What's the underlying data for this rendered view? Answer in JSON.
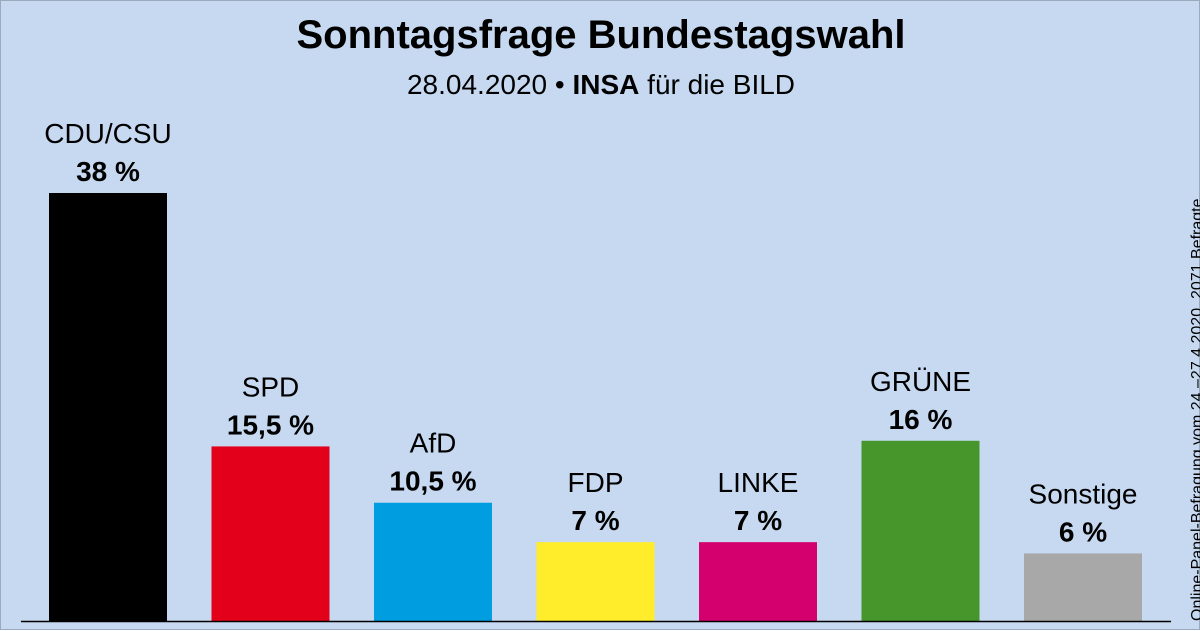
{
  "header": {
    "title": "Sonntagsfrage Bundestagswahl",
    "date": "28.04.2020",
    "bullet": "•",
    "institute": "INSA",
    "client": "für die BILD"
  },
  "footnote": "Online-Panel-Befragung vom 24.–27.4.2020, 2071 Befragte",
  "chart_data": {
    "type": "bar",
    "title": "Sonntagsfrage Bundestagswahl",
    "categories": [
      "CDU/CSU",
      "SPD",
      "AfD",
      "FDP",
      "LINKE",
      "GRÜNE",
      "Sonstige"
    ],
    "values": [
      38,
      15.5,
      10.5,
      7,
      7,
      16,
      6
    ],
    "value_labels": [
      "38 %",
      "15,5 %",
      "10,5 %",
      "7 %",
      "7 %",
      "16 %",
      "6 %"
    ],
    "colors": [
      "#000000",
      "#e3001b",
      "#009ee0",
      "#ffed2c",
      "#d4006e",
      "#46962b",
      "#a8a8a8"
    ],
    "unit": "%",
    "ylim": [
      0,
      38
    ],
    "grid": false,
    "legend": "none"
  }
}
